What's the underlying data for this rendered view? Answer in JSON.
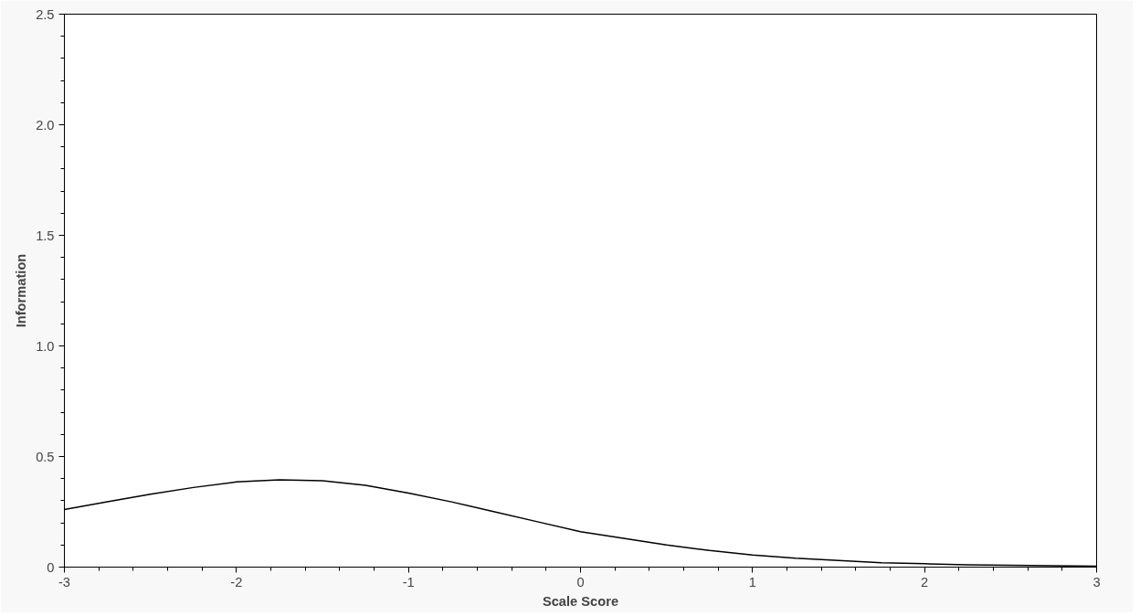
{
  "chart_data": {
    "type": "line",
    "xlabel": "Scale Score",
    "ylabel": "Information",
    "x": [
      -3,
      -2.75,
      -2.5,
      -2.25,
      -2,
      -1.75,
      -1.5,
      -1.25,
      -1,
      -0.75,
      -0.5,
      -0.25,
      0,
      0.25,
      0.5,
      0.75,
      1,
      1.25,
      1.5,
      1.75,
      2,
      2.25,
      2.5,
      2.75,
      3
    ],
    "series": [
      {
        "color": "#000000",
        "values": [
          0.26,
          0.295,
          0.33,
          0.36,
          0.385,
          0.395,
          0.39,
          0.37,
          0.335,
          0.295,
          0.25,
          0.205,
          0.16,
          0.13,
          0.1,
          0.075,
          0.055,
          0.04,
          0.03,
          0.02,
          0.015,
          0.01,
          0.008,
          0.006,
          0.004
        ]
      }
    ],
    "xlim": [
      -3,
      3
    ],
    "xticks": [
      -3,
      -2,
      -1,
      0,
      1,
      2,
      3
    ],
    "ylim": [
      0,
      2.5
    ],
    "yticks": [
      0,
      {
        "value": 0.5,
        "label": "0.5"
      },
      {
        "value": 1,
        "label": "1.0"
      },
      {
        "value": 1.5,
        "label": "1.5"
      },
      {
        "value": 2,
        "label": "2.0"
      },
      {
        "value": 2.5,
        "label": "2.5"
      }
    ],
    "grid": false,
    "marker": "none",
    "line_style": "solid"
  }
}
